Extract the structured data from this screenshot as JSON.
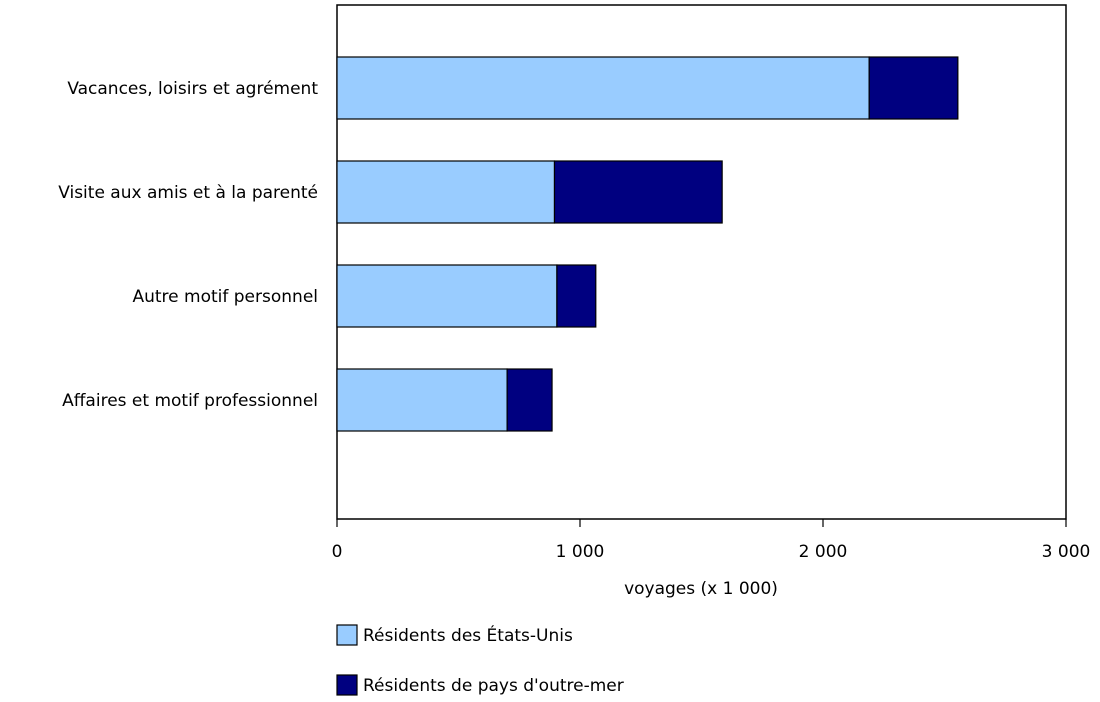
{
  "chart_data": {
    "type": "bar",
    "orientation": "horizontal",
    "stacked": true,
    "categories": [
      "Vacances, loisirs et agrément",
      "Visite aux amis et à la parenté",
      "Autre motif personnel",
      "Affaires et motif professionnel"
    ],
    "series": [
      {
        "name": "Résidents des États-Unis",
        "color": "#99ccff",
        "values": [
          2190,
          895,
          905,
          700
        ]
      },
      {
        "name": "Résidents de pays d'outre-mer",
        "color": "#000080",
        "values": [
          365,
          690,
          160,
          185
        ]
      }
    ],
    "xlabel": "voyages (x 1 000)",
    "xlim": [
      0,
      3000
    ],
    "xticks": [
      0,
      1000,
      2000,
      3000
    ],
    "xtick_labels": [
      "0",
      "1 000",
      "2 000",
      "3 000"
    ],
    "grid": false,
    "legend_position": "bottom"
  }
}
